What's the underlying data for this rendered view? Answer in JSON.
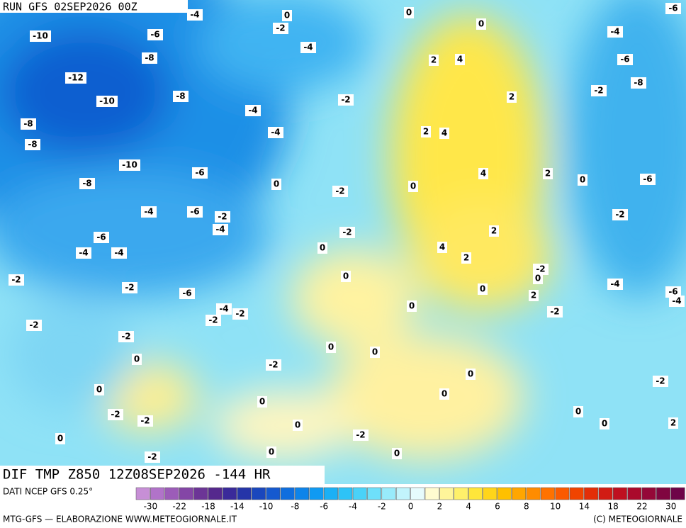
{
  "header": {
    "run": "RUN GFS 02SEP2026 00Z"
  },
  "map": {
    "title": "DIF TMP Z850 12Z08SEP2026 -144 HR",
    "contour_labels": [
      -4,
      0,
      -2,
      0,
      0,
      -6,
      -10,
      -6,
      -4,
      -4,
      -8,
      2,
      4,
      -6,
      -12,
      -8,
      -8,
      -2,
      2,
      -2,
      -10,
      -4,
      -8,
      2,
      4,
      -4,
      -8,
      -10,
      4,
      2,
      -6,
      0,
      -8,
      0,
      -6,
      -2,
      0,
      -4,
      -6,
      -2,
      -4,
      -2,
      -2,
      2,
      -6,
      -4,
      -4,
      0,
      4,
      2,
      -2,
      -2,
      0,
      0,
      -2,
      -4,
      0,
      -6,
      -4,
      -6,
      2,
      -4,
      -2,
      0,
      -2,
      -2,
      -2,
      -2,
      0,
      0,
      0,
      -2,
      0,
      -2,
      0,
      0,
      0,
      0,
      -2,
      -2,
      0,
      2,
      -2,
      0,
      0,
      -2,
      0,
      0
    ]
  },
  "legend": {
    "source": "DATI NCEP GFS 0.25°",
    "ticks": [
      -30,
      -22,
      -18,
      -14,
      -10,
      -8,
      -6,
      -4,
      -2,
      0,
      2,
      4,
      6,
      8,
      10,
      14,
      18,
      22,
      30
    ],
    "colors": [
      "#c78fd6",
      "#b173c9",
      "#9c5cb8",
      "#8446a6",
      "#6c3596",
      "#55288d",
      "#3a2a9a",
      "#2535a8",
      "#1a47bd",
      "#1559cf",
      "#0f6ede",
      "#0d84ea",
      "#109af2",
      "#1bb0f5",
      "#2ec3f7",
      "#4ad2f8",
      "#6ee0fa",
      "#98ebfb",
      "#c2f4fc",
      "#e6fbfd",
      "#fffbd0",
      "#fff59a",
      "#fff06a",
      "#ffe63a",
      "#ffd51a",
      "#ffc000",
      "#ffa600",
      "#ff8c00",
      "#ff7200",
      "#fb5a00",
      "#f04400",
      "#e32e08",
      "#d11c14",
      "#bf1020",
      "#aa0a2c",
      "#950838",
      "#800640",
      "#6e0448"
    ],
    "credit_left": "MTG-GFS — ELABORAZIONE WWW.METEOGIORNALE.IT",
    "credit_right": "(C) METEOGIORNALE"
  }
}
